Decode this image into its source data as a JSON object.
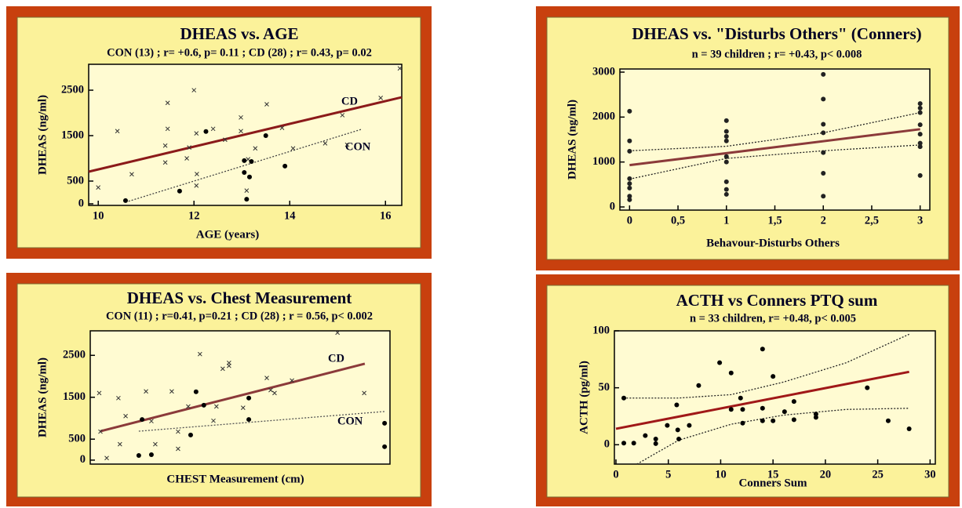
{
  "chart_data": [
    {
      "type": "scatter",
      "title": "DHEAS vs. AGE",
      "subtitle": "CON (13) ; r= +0.6, p= 0.11 ; CD (28) ; r= 0.43, p= 0.02",
      "xlabel": "AGE (years)",
      "ylabel": "DHEAS (ng/ml)",
      "xlim": [
        9.8,
        16.34
      ],
      "ylim": [
        -35,
        3070
      ],
      "xticks": [
        10,
        12,
        14,
        16
      ],
      "yticks": [
        0,
        500,
        1500,
        2500
      ],
      "series": [
        {
          "marker": "x",
          "color": "#333333",
          "x": [
            10.0,
            10.4,
            10.7,
            11.4,
            11.4,
            11.45,
            11.45,
            12.0,
            11.85,
            11.9,
            12.05,
            12.05,
            12.06,
            12.4,
            12.65,
            12.98,
            12.98,
            13.13,
            13.1,
            13.28,
            13.52,
            13.84,
            14.07,
            14.74,
            15.1,
            15.2,
            15.9,
            16.3
          ],
          "values": [
            360,
            1600,
            650,
            910,
            1280,
            1650,
            2220,
            2500,
            1000,
            1240,
            1550,
            400,
            655,
            1650,
            1410,
            1900,
            1600,
            980,
            290,
            1220,
            2190,
            1670,
            1220,
            1330,
            1950,
            1300,
            2330,
            2980
          ]
        },
        {
          "marker": "dot",
          "color": "#000000",
          "x": [
            10.57,
            11.7,
            12.25,
            13.05,
            13.2,
            13.05,
            13.16,
            13.1,
            13.5,
            13.9
          ],
          "values": [
            70,
            280,
            1590,
            950,
            930,
            690,
            590,
            100,
            1500,
            830
          ]
        }
      ],
      "fits": [
        {
          "name": "CD",
          "color": "#8b1a1a",
          "dash": false,
          "x": [
            9.8,
            16.34
          ],
          "values": [
            707,
            2345
          ]
        },
        {
          "name": "CON",
          "color": "#444444",
          "dash": true,
          "x": [
            10.57,
            15.5
          ],
          "values": [
            35,
            1640
          ]
        }
      ]
    },
    {
      "type": "scatter",
      "title": "DHEAS vs. \"Disturbs Others\" (Conners)",
      "subtitle": "n = 39 children ; r= +0.43,  p< 0.008",
      "xlabel": "Behavour-Disturbs Others",
      "ylabel": "DHEAS (ng/ml)",
      "xlim": [
        -0.1,
        3.1
      ],
      "ylim": [
        -70,
        3070
      ],
      "xticks": [
        0,
        {
          "value": 0.5,
          "label": "0,5"
        },
        1,
        {
          "value": 1.5,
          "label": "1,5"
        },
        2,
        {
          "value": 2.5,
          "label": "2,5"
        },
        3
      ],
      "yticks": [
        0,
        1000,
        2000,
        3000
      ],
      "series": [
        {
          "marker": "dot",
          "color": "#222222",
          "x": [
            0,
            0,
            0,
            0,
            0,
            0,
            0,
            0,
            1,
            1,
            1,
            1,
            1,
            1,
            1,
            1,
            1,
            2,
            2,
            2,
            2,
            2,
            2,
            2,
            3,
            3,
            3,
            3,
            3,
            3,
            3,
            3
          ],
          "values": [
            2130,
            1470,
            1240,
            630,
            520,
            420,
            240,
            160,
            1920,
            1680,
            1570,
            1470,
            1120,
            1000,
            560,
            390,
            280,
            2950,
            2400,
            1840,
            1650,
            1210,
            750,
            240,
            2300,
            2200,
            2100,
            1830,
            1620,
            1420,
            1340,
            700
          ]
        }
      ],
      "fits": [
        {
          "color": "#8b3a3a",
          "dash": false,
          "x": [
            0,
            3
          ],
          "values": [
            930,
            1730
          ]
        },
        {
          "color": "#222222",
          "dash": true,
          "x": [
            0,
            1,
            2,
            3
          ],
          "values": [
            1250,
            1350,
            1650,
            2100
          ]
        },
        {
          "color": "#222222",
          "dash": true,
          "x": [
            0,
            1,
            2,
            3
          ],
          "values": [
            620,
            1080,
            1250,
            1380
          ]
        }
      ]
    },
    {
      "type": "scatter",
      "title": "DHEAS vs. Chest Measurement",
      "subtitle": "CON (11) ; r=0.41,  p=0.21 ; CD (28) ; r = 0.56, p< 0.002",
      "xlabel": "CHEST Measurement (cm)",
      "ylabel": "DHEAS (ng/ml)",
      "xlim": [
        0,
        100
      ],
      "ylim": [
        -95,
        3085
      ],
      "yticks": [
        0,
        500,
        1500,
        2500
      ],
      "series": [
        {
          "marker": "x",
          "color": "#333333",
          "x": [
            3,
            3.4,
            5.5,
            9.4,
            9.9,
            11.8,
            18.6,
            20.4,
            21.7,
            27.2,
            29.3,
            29.3,
            32.7,
            36.6,
            41.1,
            42.1,
            44.2,
            46.3,
            46.3,
            51,
            58.9,
            60.2,
            61.5,
            67.3,
            82.5,
            91.4
          ],
          "values": [
            1600,
            680,
            50,
            1480,
            380,
            1050,
            1640,
            930,
            380,
            1640,
            680,
            270,
            1280,
            2530,
            940,
            1280,
            2180,
            2320,
            2250,
            1250,
            1960,
            1670,
            1600,
            1900,
            3040,
            1600
          ]
        },
        {
          "marker": "dot",
          "color": "#000000",
          "x": [
            16.2,
            20.4,
            17.3,
            33.5,
            35.3,
            37.9,
            52.9,
            52.9,
            98.2,
            98.2
          ],
          "values": [
            110,
            130,
            970,
            600,
            1630,
            1310,
            970,
            1480,
            880,
            320
          ]
        }
      ],
      "fits": [
        {
          "name": "CD",
          "color": "#8b3a3a",
          "dash": false,
          "x": [
            3.4,
            91.6
          ],
          "values": [
            690,
            2300
          ]
        },
        {
          "name": "CON",
          "color": "#555555",
          "dash": true,
          "x": [
            16.2,
            98.2
          ],
          "values": [
            690,
            1160
          ]
        }
      ]
    },
    {
      "type": "scatter",
      "title": "ACTH vs Conners PTQ sum",
      "subtitle": "n = 33 children,  r= +0.48,  p< 0.005",
      "xlabel": "Conners Sum",
      "ylabel": "ACTH (pg/ml)",
      "xlim": [
        -0.15,
        30.5
      ],
      "ylim": [
        -17,
        100
      ],
      "xticks": [
        0,
        5,
        10,
        15,
        20,
        25,
        30
      ],
      "yticks": [
        0,
        50,
        100
      ],
      "series": [
        {
          "marker": "dot",
          "color": "#000000",
          "x": [
            0.75,
            0.75,
            1.7,
            2.8,
            3.8,
            3.8,
            4.9,
            5.8,
            5.9,
            6.0,
            7,
            7.9,
            9.9,
            11,
            11,
            11.9,
            12.1,
            12.1,
            14,
            14,
            14,
            15,
            15,
            16.1,
            17,
            17,
            19.1,
            19.1,
            24,
            26,
            28
          ],
          "values": [
            41,
            1.4,
            1.4,
            8,
            5,
            1,
            17,
            35,
            13,
            5,
            17,
            52,
            72,
            63,
            31,
            41,
            31,
            19,
            84,
            32,
            21,
            60,
            21,
            29,
            38,
            22,
            27,
            24,
            50,
            21,
            14
          ]
        }
      ],
      "fits": [
        {
          "color": "#a01818",
          "dash": false,
          "x": [
            0,
            28
          ],
          "values": [
            14,
            64
          ]
        },
        {
          "color": "#222222",
          "dash": true,
          "x": [
            1,
            6,
            11,
            16,
            22,
            28
          ],
          "values": [
            41,
            41,
            44,
            55,
            72,
            97
          ]
        },
        {
          "color": "#222222",
          "dash": true,
          "x": [
            2,
            6,
            11,
            16,
            22,
            28
          ],
          "values": [
            -17,
            4,
            18,
            26,
            31,
            32
          ]
        }
      ]
    }
  ]
}
